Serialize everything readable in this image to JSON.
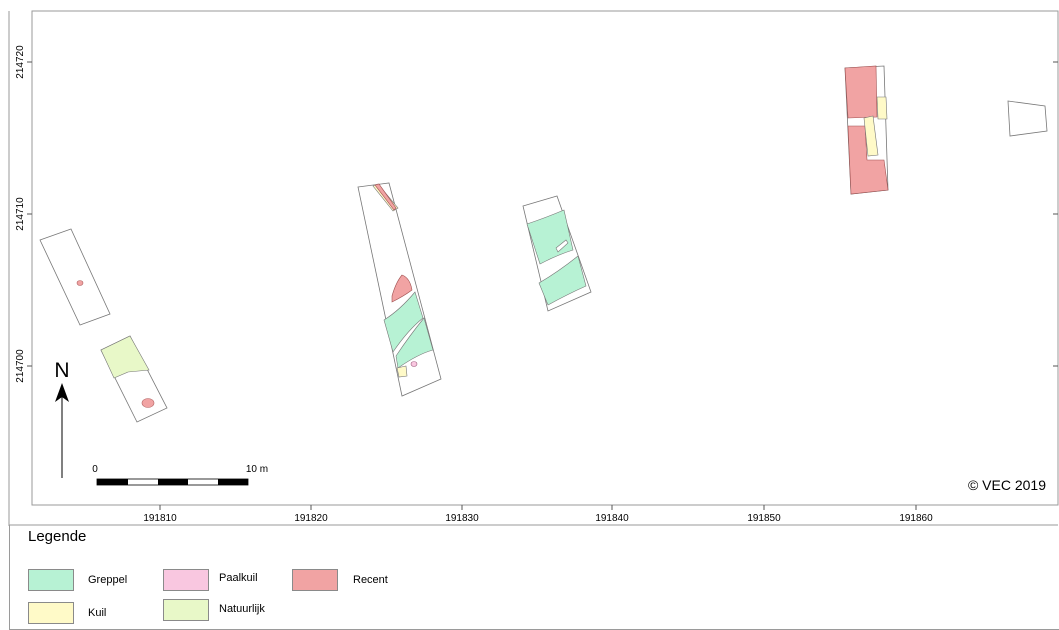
{
  "map": {
    "x_ticks": [
      "191810",
      "191820",
      "191830",
      "191840",
      "191850",
      "191860"
    ],
    "y_ticks": [
      "214700",
      "214710",
      "214720"
    ],
    "north_label": "N",
    "scale": {
      "start_label": "0",
      "end_label": "10 m"
    },
    "copyright": "© VEC 2019"
  },
  "legend": {
    "title": "Legende",
    "items": [
      {
        "label": "Greppel",
        "color": "#b7f2d4"
      },
      {
        "label": "Paalkuil",
        "color": "#f9c7e0"
      },
      {
        "label": "Recent",
        "color": "#f1a3a3"
      },
      {
        "label": "Kuil",
        "color": "#fffac8"
      },
      {
        "label": "Natuurlijk",
        "color": "#e8f8c8"
      }
    ]
  }
}
